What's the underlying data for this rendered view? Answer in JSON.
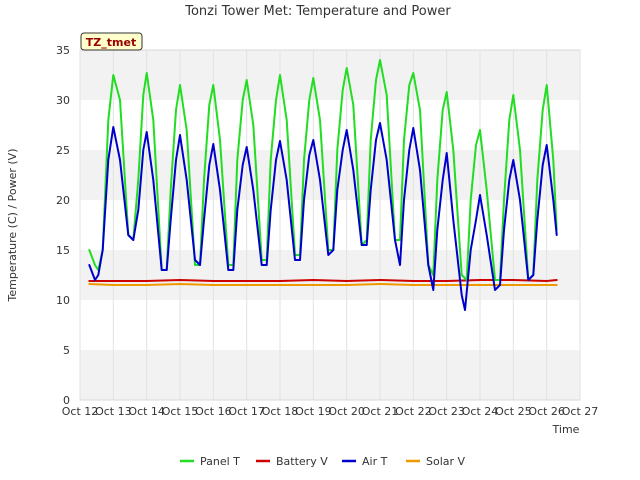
{
  "chart_data": {
    "type": "line",
    "title": "Tonzi Tower Met: Temperature and Power",
    "xlabel": "Time",
    "ylabel": "Temperature (C) / Power (V)",
    "site_tag": "TZ_tmet",
    "x_range": [
      12,
      27
    ],
    "ylim": [
      0,
      35
    ],
    "x_ticks": [
      12,
      13,
      14,
      15,
      16,
      17,
      18,
      19,
      20,
      21,
      22,
      23,
      24,
      25,
      26,
      27
    ],
    "x_tick_labels": [
      "Oct 12",
      "Oct 13",
      "Oct 14",
      "Oct 15",
      "Oct 16",
      "Oct 17",
      "Oct 18",
      "Oct 19",
      "Oct 20",
      "Oct 21",
      "Oct 22",
      "Oct 23",
      "Oct 24",
      "Oct 25",
      "Oct 26",
      "Oct 27"
    ],
    "y_ticks": [
      0,
      5,
      10,
      15,
      20,
      25,
      30,
      35
    ],
    "grid": "horizontal-bands",
    "legend_position": "bottom",
    "series": [
      {
        "name": "Panel T",
        "color": "#22dd22",
        "x": [
          12.28,
          12.45,
          12.55,
          12.68,
          12.85,
          13.0,
          13.2,
          13.45,
          13.6,
          13.75,
          13.9,
          14.0,
          14.2,
          14.45,
          14.6,
          14.72,
          14.88,
          15.0,
          15.2,
          15.45,
          15.6,
          15.72,
          15.88,
          16.0,
          16.2,
          16.45,
          16.6,
          16.72,
          16.88,
          17.0,
          17.2,
          17.45,
          17.6,
          17.72,
          17.88,
          18.0,
          18.2,
          18.45,
          18.6,
          18.72,
          18.88,
          19.0,
          19.2,
          19.45,
          19.6,
          19.72,
          19.88,
          20.0,
          20.2,
          20.45,
          20.6,
          20.72,
          20.88,
          21.0,
          21.2,
          21.45,
          21.6,
          21.72,
          21.88,
          22.0,
          22.2,
          22.45,
          22.6,
          22.72,
          22.88,
          23.0,
          23.2,
          23.45,
          23.6,
          23.72,
          23.88,
          24.0,
          24.2,
          24.45,
          24.6,
          24.72,
          24.88,
          25.0,
          25.2,
          25.45,
          25.6,
          25.72,
          25.88,
          26.0,
          26.2,
          26.3
        ],
        "y": [
          15.0,
          13.5,
          13.0,
          15.0,
          28.0,
          32.5,
          30.0,
          16.5,
          16.0,
          22.0,
          30.5,
          32.7,
          28.0,
          13.0,
          13.0,
          21.0,
          29.0,
          31.5,
          27.0,
          13.5,
          13.5,
          22.0,
          29.5,
          31.5,
          26.0,
          13.5,
          13.5,
          24.0,
          30.0,
          32.0,
          27.5,
          14.0,
          14.0,
          24.0,
          30.0,
          32.5,
          28.0,
          14.5,
          14.5,
          24.0,
          30.0,
          32.2,
          28.0,
          15.0,
          15.0,
          25.0,
          31.0,
          33.2,
          29.5,
          15.5,
          16.0,
          26.0,
          32.0,
          34.0,
          30.5,
          16.0,
          16.0,
          26.0,
          31.5,
          32.7,
          29.0,
          13.5,
          12.5,
          22.0,
          29.0,
          30.8,
          25.0,
          12.5,
          12.0,
          20.0,
          25.5,
          27.0,
          21.0,
          12.0,
          12.0,
          20.0,
          28.0,
          30.5,
          25.0,
          12.0,
          12.5,
          22.0,
          29.0,
          31.5,
          24.0,
          17.0
        ]
      },
      {
        "name": "Battery V",
        "color": "#cc0000",
        "x": [
          12.28,
          13.0,
          14.0,
          15.0,
          16.0,
          17.0,
          18.0,
          19.0,
          20.0,
          21.0,
          22.0,
          23.0,
          24.0,
          25.0,
          26.0,
          26.3
        ],
        "y": [
          11.9,
          11.9,
          11.9,
          12.0,
          11.9,
          11.9,
          11.9,
          12.0,
          11.9,
          12.0,
          11.9,
          11.9,
          12.0,
          12.0,
          11.9,
          12.0
        ]
      },
      {
        "name": "Air T",
        "color": "#0000cc",
        "x": [
          12.28,
          12.45,
          12.55,
          12.68,
          12.85,
          13.0,
          13.2,
          13.45,
          13.6,
          13.75,
          13.9,
          14.0,
          14.2,
          14.45,
          14.6,
          14.72,
          14.88,
          15.0,
          15.2,
          15.45,
          15.6,
          15.72,
          15.88,
          16.0,
          16.2,
          16.45,
          16.6,
          16.72,
          16.88,
          17.0,
          17.2,
          17.45,
          17.6,
          17.72,
          17.88,
          18.0,
          18.2,
          18.45,
          18.6,
          18.72,
          18.88,
          19.0,
          19.2,
          19.45,
          19.6,
          19.72,
          19.88,
          20.0,
          20.2,
          20.45,
          20.6,
          20.72,
          20.88,
          21.0,
          21.2,
          21.45,
          21.6,
          21.72,
          21.88,
          22.0,
          22.2,
          22.45,
          22.6,
          22.72,
          22.88,
          23.0,
          23.2,
          23.45,
          23.55,
          23.72,
          23.88,
          24.0,
          24.2,
          24.45,
          24.6,
          24.72,
          24.88,
          25.0,
          25.2,
          25.45,
          25.6,
          25.72,
          25.88,
          26.0,
          26.2,
          26.3
        ],
        "y": [
          13.5,
          12.0,
          12.5,
          15.0,
          24.0,
          27.3,
          24.0,
          16.5,
          16.0,
          19.0,
          25.0,
          26.8,
          22.0,
          13.0,
          13.0,
          18.0,
          24.0,
          26.5,
          22.0,
          14.0,
          13.5,
          18.0,
          23.5,
          25.6,
          21.0,
          13.0,
          13.0,
          19.0,
          23.5,
          25.3,
          21.0,
          13.5,
          13.5,
          19.0,
          24.0,
          25.9,
          22.0,
          14.0,
          14.0,
          20.0,
          24.5,
          26.0,
          22.0,
          14.5,
          15.0,
          21.0,
          25.0,
          27.0,
          23.0,
          15.5,
          15.5,
          21.0,
          26.0,
          27.7,
          24.0,
          16.0,
          13.5,
          20.0,
          25.0,
          27.2,
          23.0,
          13.5,
          11.0,
          17.0,
          22.0,
          24.7,
          18.0,
          10.5,
          9.0,
          15.0,
          18.0,
          20.5,
          16.5,
          11.0,
          11.5,
          17.0,
          22.0,
          24.0,
          20.0,
          12.0,
          12.5,
          18.0,
          23.5,
          25.5,
          20.0,
          16.5
        ]
      },
      {
        "name": "Solar V",
        "color": "#ee9900",
        "x": [
          12.28,
          13.0,
          14.0,
          15.0,
          16.0,
          17.0,
          18.0,
          19.0,
          20.0,
          21.0,
          22.0,
          23.0,
          24.0,
          25.0,
          26.0,
          26.3
        ],
        "y": [
          11.6,
          11.5,
          11.5,
          11.6,
          11.5,
          11.5,
          11.5,
          11.5,
          11.5,
          11.6,
          11.5,
          11.5,
          11.5,
          11.5,
          11.5,
          11.5
        ]
      }
    ]
  }
}
